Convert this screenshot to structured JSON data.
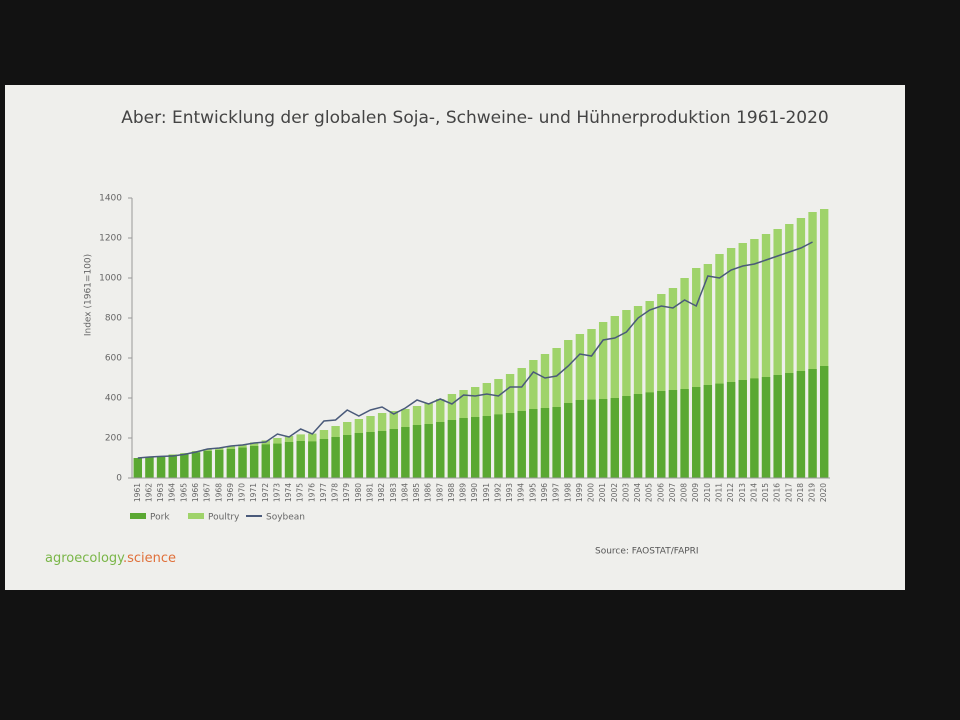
{
  "chart_data": {
    "type": "bar",
    "title": "Aber: Entwicklung der globalen Soja-, Schweine- und Hühnerproduktion 1961-2020",
    "y_label": "Index (1961=100)",
    "categories": [
      "1961",
      "1962",
      "1963",
      "1964",
      "1965",
      "1966",
      "1967",
      "1968",
      "1969",
      "1970",
      "1971",
      "1972",
      "1973",
      "1974",
      "1975",
      "1976",
      "1977",
      "1978",
      "1979",
      "1980",
      "1981",
      "1982",
      "1983",
      "1984",
      "1985",
      "1986",
      "1987",
      "1988",
      "1989",
      "1990",
      "1991",
      "1992",
      "1993",
      "1994",
      "1995",
      "1996",
      "1997",
      "1998",
      "1999",
      "2000",
      "2001",
      "2002",
      "2003",
      "2004",
      "2005",
      "2006",
      "2007",
      "2008",
      "2009",
      "2010",
      "2011",
      "2012",
      "2013",
      "2014",
      "2015",
      "2016",
      "2017",
      "2018",
      "2019",
      "2020"
    ],
    "series": [
      {
        "name": "Pork",
        "color": "#5aa832",
        "kind": "bar",
        "values": [
          100,
          104,
          110,
          115,
          120,
          128,
          135,
          140,
          145,
          152,
          160,
          168,
          172,
          180,
          185,
          183,
          195,
          205,
          215,
          225,
          230,
          235,
          245,
          255,
          265,
          270,
          280,
          290,
          300,
          305,
          310,
          318,
          325,
          335,
          345,
          350,
          355,
          375,
          390,
          392,
          395,
          400,
          410,
          420,
          428,
          435,
          440,
          445,
          455,
          465,
          472,
          480,
          490,
          498,
          505,
          515,
          525,
          535,
          545,
          560
        ]
      },
      {
        "name": "Poultry",
        "color": "#9fd36a",
        "kind": "bar",
        "values": [
          100,
          105,
          110,
          118,
          125,
          135,
          145,
          150,
          158,
          168,
          178,
          188,
          200,
          210,
          218,
          222,
          240,
          260,
          280,
          295,
          310,
          325,
          335,
          345,
          360,
          375,
          395,
          420,
          440,
          455,
          475,
          495,
          520,
          550,
          590,
          620,
          650,
          690,
          720,
          745,
          780,
          810,
          840,
          860,
          885,
          920,
          950,
          1000,
          1050,
          1070,
          1120,
          1150,
          1175,
          1195,
          1220,
          1245,
          1270,
          1300,
          1330,
          1345
        ]
      },
      {
        "name": "Soybean",
        "color": "#4a5a7a",
        "kind": "line",
        "values": [
          100,
          105,
          108,
          110,
          118,
          130,
          145,
          150,
          160,
          165,
          175,
          180,
          220,
          205,
          245,
          220,
          285,
          290,
          340,
          310,
          340,
          355,
          320,
          350,
          390,
          370,
          395,
          370,
          415,
          410,
          420,
          410,
          455,
          455,
          530,
          500,
          510,
          560,
          620,
          610,
          690,
          700,
          730,
          800,
          840,
          860,
          850,
          890,
          860,
          1010,
          1000,
          1040,
          1060,
          1070,
          1090,
          1110,
          1130,
          1150,
          1180,
          null
        ]
      }
    ],
    "ylim": [
      0,
      1400
    ],
    "yticks": [
      0,
      200,
      400,
      600,
      800,
      1000,
      1200,
      1400
    ],
    "grid": false
  },
  "branding": {
    "name": "agroecology",
    "suffix": ".science"
  },
  "source": "Source: FAOSTAT/FAPRI"
}
